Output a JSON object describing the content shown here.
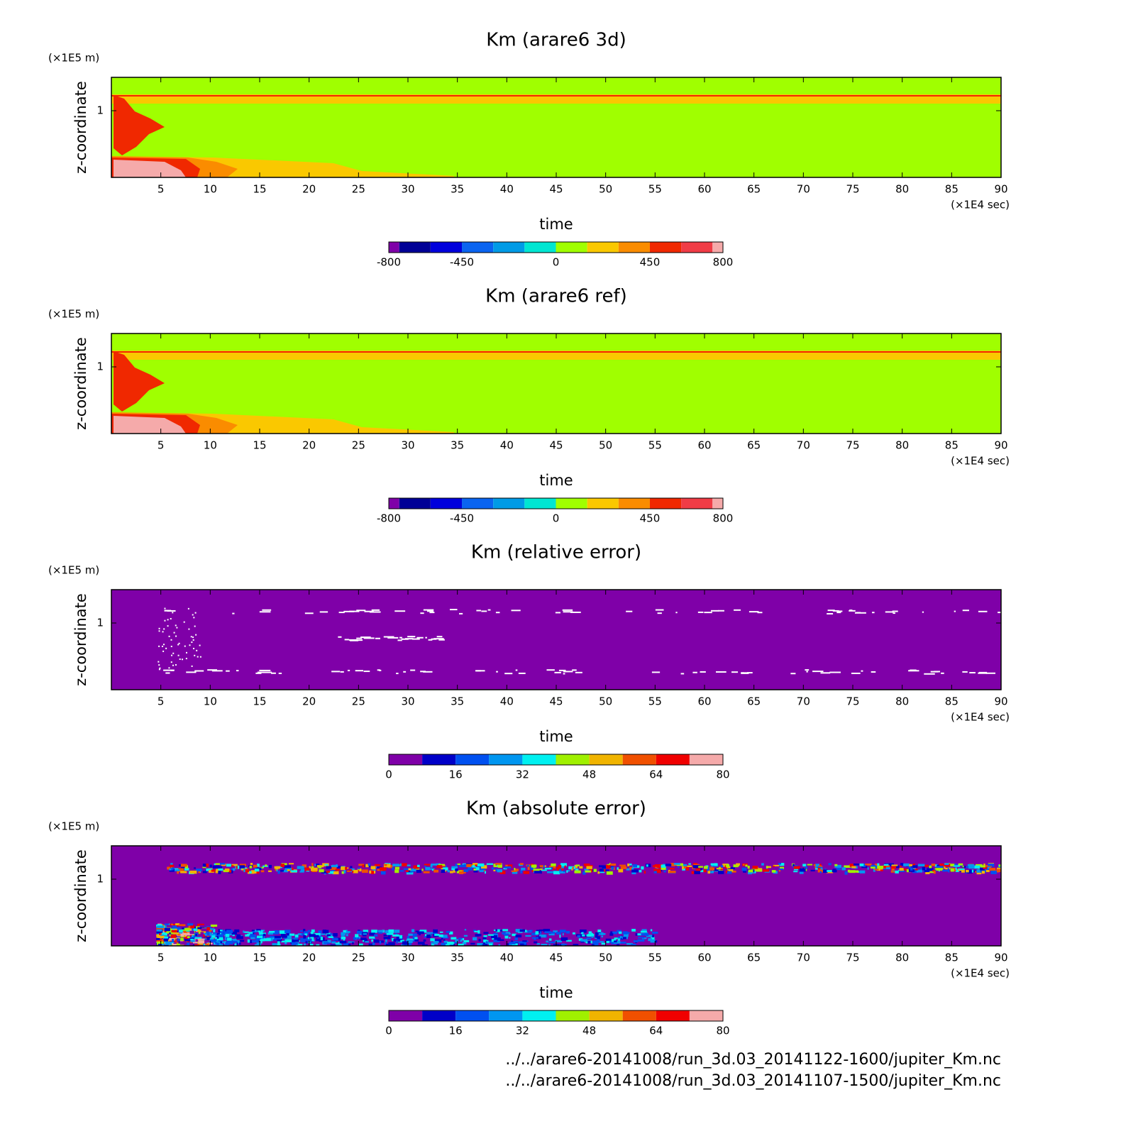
{
  "chart_data": [
    {
      "type": "contour",
      "title": "Km (arare6 3d)",
      "x_label": "time",
      "x_unit_label": "(×1E4 sec)",
      "y_label": "z-coordinate",
      "y_unit_label": "(×1E5 m)",
      "xlim": [
        0,
        90
      ],
      "xticks": [
        5,
        10,
        15,
        20,
        25,
        30,
        35,
        40,
        45,
        50,
        55,
        60,
        65,
        70,
        75,
        80,
        85,
        90
      ],
      "ylim": [
        0,
        1.5
      ],
      "yticks": [
        1
      ],
      "colorbar": {
        "levels": [
          -800,
          -750,
          -600,
          -450,
          -300,
          -150,
          0,
          150,
          300,
          450,
          600,
          750,
          800
        ],
        "colors": [
          "#7f00a8",
          "#000096",
          "#0000dc",
          "#0a64f0",
          "#009be6",
          "#00e6d2",
          "#a0ff00",
          "#fac800",
          "#fa8c00",
          "#f02800",
          "#f03c46",
          "#f5aaaa"
        ],
        "ticks": [
          -800,
          -450,
          0,
          450,
          800
        ]
      }
    },
    {
      "type": "contour",
      "title": "Km (arare6 ref)",
      "x_label": "time",
      "x_unit_label": "(×1E4 sec)",
      "y_label": "z-coordinate",
      "y_unit_label": "(×1E5 m)",
      "xlim": [
        0,
        90
      ],
      "xticks": [
        5,
        10,
        15,
        20,
        25,
        30,
        35,
        40,
        45,
        50,
        55,
        60,
        65,
        70,
        75,
        80,
        85,
        90
      ],
      "ylim": [
        0,
        1.5
      ],
      "yticks": [
        1
      ],
      "colorbar": {
        "levels": [
          -800,
          -750,
          -600,
          -450,
          -300,
          -150,
          0,
          150,
          300,
          450,
          600,
          750,
          800
        ],
        "colors": [
          "#7f00a8",
          "#000096",
          "#0000dc",
          "#0a64f0",
          "#009be6",
          "#00e6d2",
          "#a0ff00",
          "#fac800",
          "#fa8c00",
          "#f02800",
          "#f03c46",
          "#f5aaaa"
        ],
        "ticks": [
          -800,
          -450,
          0,
          450,
          800
        ]
      }
    },
    {
      "type": "contour",
      "title": "Km (relative error)",
      "x_label": "time",
      "x_unit_label": "(×1E4 sec)",
      "y_label": "z-coordinate",
      "y_unit_label": "(×1E5 m)",
      "xlim": [
        0,
        90
      ],
      "xticks": [
        5,
        10,
        15,
        20,
        25,
        30,
        35,
        40,
        45,
        50,
        55,
        60,
        65,
        70,
        75,
        80,
        85,
        90
      ],
      "ylim": [
        0,
        1.5
      ],
      "yticks": [
        1
      ],
      "colorbar": {
        "levels": [
          0,
          8,
          16,
          24,
          32,
          40,
          48,
          56,
          64,
          72,
          80
        ],
        "colors": [
          "#7f00a8",
          "#0000c8",
          "#0050f0",
          "#0096f0",
          "#00f0f0",
          "#a0f000",
          "#f0b400",
          "#f05000",
          "#f00000",
          "#f5aaaa"
        ],
        "ticks": [
          0,
          16,
          32,
          48,
          64,
          80
        ]
      }
    },
    {
      "type": "contour",
      "title": "Km (absolute error)",
      "x_label": "time",
      "x_unit_label": "(×1E4 sec)",
      "y_label": "z-coordinate",
      "y_unit_label": "(×1E5 m)",
      "xlim": [
        0,
        90
      ],
      "xticks": [
        5,
        10,
        15,
        20,
        25,
        30,
        35,
        40,
        45,
        50,
        55,
        60,
        65,
        70,
        75,
        80,
        85,
        90
      ],
      "ylim": [
        0,
        1.5
      ],
      "yticks": [
        1
      ],
      "colorbar": {
        "levels": [
          0,
          8,
          16,
          24,
          32,
          40,
          48,
          56,
          64,
          72,
          80
        ],
        "colors": [
          "#7f00a8",
          "#0000c8",
          "#0050f0",
          "#0096f0",
          "#00f0f0",
          "#a0f000",
          "#f0b400",
          "#f05000",
          "#f00000",
          "#f5aaaa"
        ],
        "ticks": [
          0,
          16,
          32,
          48,
          64,
          80
        ]
      }
    }
  ],
  "footer_lines": [
    "../../arare6-20141008/run_3d.03_20141122-1600/jupiter_Km.nc",
    "../../arare6-20141008/run_3d.03_20141107-1500/jupiter_Km.nc"
  ]
}
